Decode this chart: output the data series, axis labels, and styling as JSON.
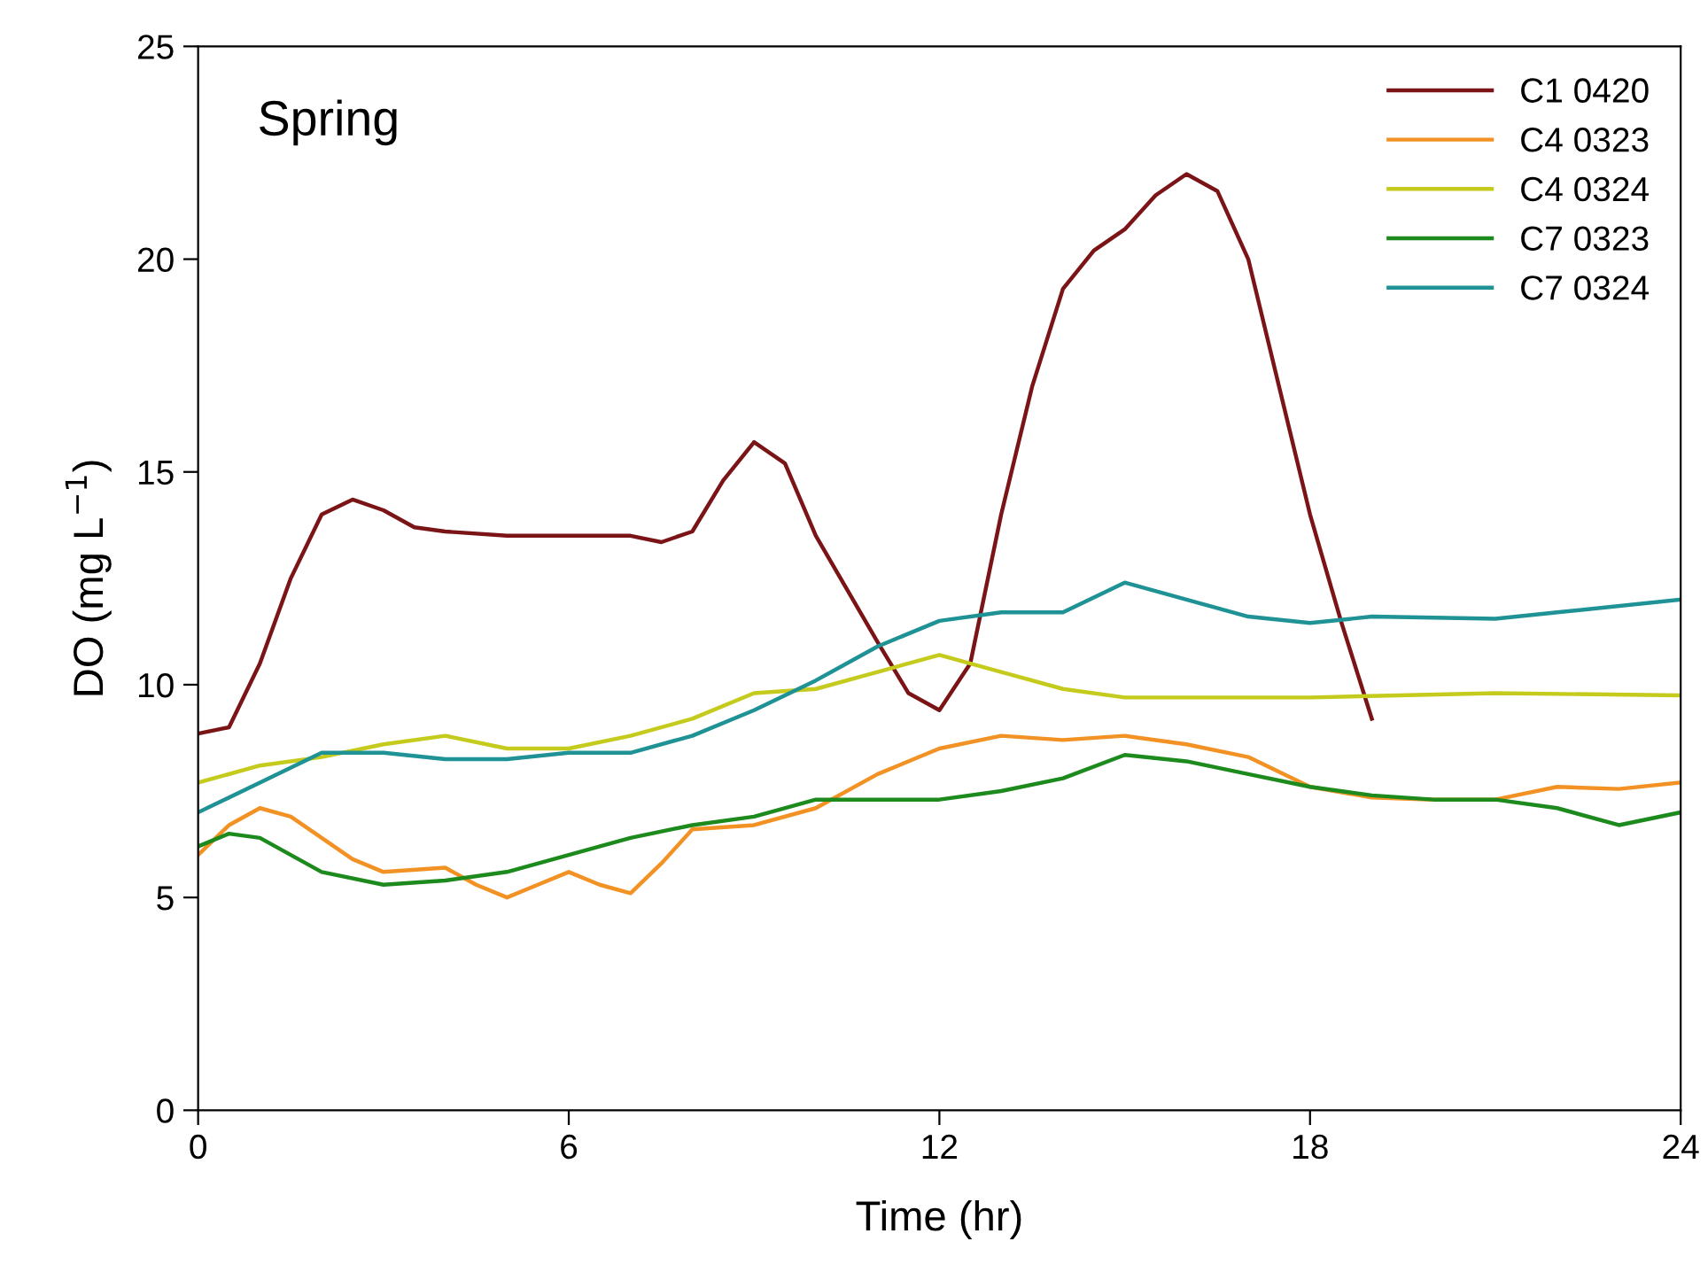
{
  "chart_data": {
    "type": "line",
    "xlabel": "Time (hr)",
    "ylabel": "DO (mg L$^{−1}$)",
    "annotations": [
      "Spring"
    ],
    "xlim": [
      0,
      24
    ],
    "ylim": [
      0,
      25
    ],
    "xticks": [
      0,
      6,
      12,
      18,
      24
    ],
    "yticks": [
      0,
      5,
      10,
      15,
      20,
      25
    ],
    "grid": false,
    "legend": "top right",
    "line_style": "solid",
    "marker": "none",
    "series": [
      {
        "name": "C1 0420",
        "color": "#7b1416",
        "x": [
          0,
          0.5,
          1,
          1.5,
          2,
          2.5,
          3,
          3.5,
          4,
          5,
          6,
          7,
          7.5,
          8,
          8.5,
          9,
          9.5,
          10,
          11,
          11.5,
          12,
          12.5,
          13,
          13.5,
          14,
          14.5,
          15,
          15.5,
          16,
          16.5,
          17,
          17.5,
          18,
          18.5,
          19
        ],
        "values": [
          8.85,
          9.0,
          10.5,
          12.5,
          14.0,
          14.35,
          14.1,
          13.7,
          13.6,
          13.5,
          13.5,
          13.5,
          13.35,
          13.6,
          14.8,
          15.7,
          15.2,
          13.5,
          11.0,
          9.8,
          9.4,
          10.5,
          14.0,
          17.0,
          19.3,
          20.2,
          20.7,
          21.5,
          22.0,
          21.6,
          20.0,
          17.0,
          14.0,
          11.5,
          9.2
        ]
      },
      {
        "name": "C4 0323",
        "color": "#f39224",
        "x": [
          0,
          0.5,
          1,
          1.5,
          2,
          2.5,
          3,
          4,
          4.5,
          5,
          5.5,
          6,
          6.5,
          7,
          7.5,
          8,
          9,
          10,
          11,
          12,
          13,
          14,
          15,
          16,
          17,
          18,
          19,
          20,
          21,
          22,
          23,
          24
        ],
        "values": [
          6.0,
          6.7,
          7.1,
          6.9,
          6.4,
          5.9,
          5.6,
          5.7,
          5.3,
          5.0,
          5.3,
          5.6,
          5.3,
          5.1,
          5.8,
          6.6,
          6.7,
          7.1,
          7.9,
          8.5,
          8.8,
          8.7,
          8.8,
          8.6,
          8.3,
          7.6,
          7.35,
          7.3,
          7.3,
          7.6,
          7.55,
          7.7
        ]
      },
      {
        "name": "C4 0324",
        "color": "#c5cb1c",
        "x": [
          0,
          1,
          2,
          3,
          4,
          5,
          6,
          7,
          8,
          9,
          10,
          11,
          12,
          13,
          14,
          15,
          18,
          21,
          24
        ],
        "values": [
          7.7,
          8.1,
          8.3,
          8.6,
          8.8,
          8.5,
          8.5,
          8.8,
          9.2,
          9.8,
          9.9,
          10.3,
          10.7,
          10.3,
          9.9,
          9.7,
          9.7,
          9.8,
          9.75
        ]
      },
      {
        "name": "C7 0323",
        "color": "#1d8a1d",
        "x": [
          0,
          0.5,
          1,
          2,
          3,
          4,
          5,
          6,
          7,
          8,
          9,
          10,
          11,
          12,
          13,
          14,
          15,
          16,
          17,
          18,
          19,
          20,
          21,
          22,
          23,
          24
        ],
        "values": [
          6.2,
          6.5,
          6.4,
          5.6,
          5.3,
          5.4,
          5.6,
          6.0,
          6.4,
          6.7,
          6.9,
          7.3,
          7.3,
          7.3,
          7.5,
          7.8,
          8.35,
          8.2,
          7.9,
          7.6,
          7.4,
          7.3,
          7.3,
          7.1,
          6.7,
          7.0
        ]
      },
      {
        "name": "C7 0324",
        "color": "#1f9296",
        "x": [
          0,
          1,
          2,
          3,
          4,
          5,
          6,
          7,
          8,
          9,
          10,
          11,
          12,
          13,
          14,
          15,
          16,
          17,
          18,
          19,
          21,
          22,
          24
        ],
        "values": [
          7.0,
          7.7,
          8.4,
          8.4,
          8.25,
          8.25,
          8.4,
          8.4,
          8.8,
          9.4,
          10.1,
          10.9,
          11.5,
          11.7,
          11.7,
          12.4,
          12.0,
          11.6,
          11.45,
          11.6,
          11.55,
          11.7,
          12.0
        ]
      }
    ]
  }
}
